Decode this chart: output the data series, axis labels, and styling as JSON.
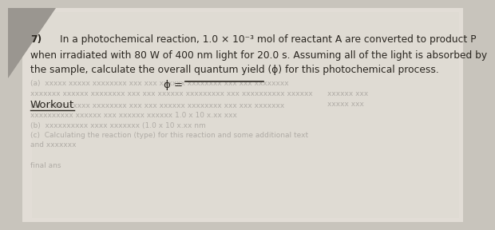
{
  "bg_color": "#c8c4bc",
  "paper_color_light": "#dedad2",
  "paper_color_mid": "#e2ddd6",
  "shadow_color": "#9a9690",
  "text_color": "#2a2620",
  "faded_color": "#b0aca6",
  "question_number": "7)",
  "indent": "        ",
  "line1": "In a photochemical reaction, 1.0 × 10⁻³ mol of reactant A are converted to product P",
  "line2": "when irradiated with 80 W of 400 nm light for 20.0 s. Assuming all of the light is absorbed by",
  "line3": "the sample, calculate the overall quantum yield (ϕ) for this photochemical process.",
  "phi_label": "ϕ = ",
  "workout_label": "Workout",
  "faded_row1": "(a)  xxxxxx xxxxx xxxxxxxx xxx xxx xxxxxx xxxxxxxx xxx xxx xxxxxxx",
  "faded_row2": "xxxxxxxxxx xxxxxx xxx xxxxxx xxxxxx 1.0 x 10 x.xx xxx",
  "faded_row3": "(b)  xxxxxxxxxx xxxx xxxxxxx (1.0 x 10 x.xx nm",
  "faded_row4": "(c)  Calculating the reaction (type) for this reaction and some additional x",
  "faded_row5": "and xxxxxxx",
  "faded_row6": "final ans",
  "fs_main": 8.8,
  "fs_phi": 9.5,
  "fs_workout": 9.5,
  "fs_faded": 6.5
}
